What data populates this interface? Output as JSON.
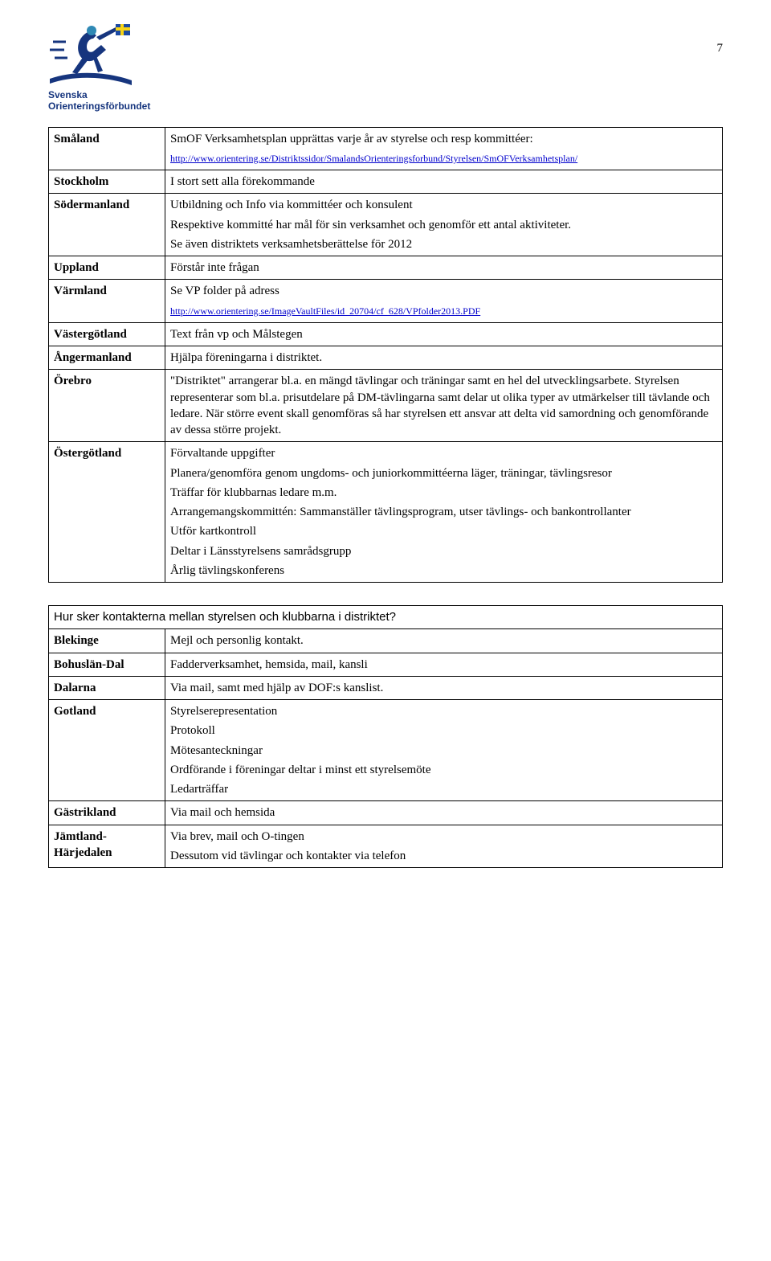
{
  "page_number": "7",
  "logo": {
    "line1": "Svenska",
    "line2": "Orienteringsförbundet",
    "colors": {
      "primary": "#16357e",
      "accent": "#2f89b5",
      "flag_y": "#f7d417",
      "flag_b": "#1b4aa3"
    }
  },
  "table1": {
    "rows": [
      {
        "label": "Småland",
        "paras": [
          {
            "text": "SmOF Verksamhetsplan upprättas varje år av styrelse och resp kommittéer:"
          },
          {
            "link": "http://www.orientering.se/Distriktssidor/SmalandsOrienteringsforbund/Styrelsen/SmOFVerksamhetsplan/",
            "small": true
          }
        ]
      },
      {
        "label": "Stockholm",
        "paras": [
          {
            "text": "I stort sett alla förekommande"
          }
        ]
      },
      {
        "label": "Södermanland",
        "paras": [
          {
            "text": "Utbildning och Info via kommittéer och konsulent"
          },
          {
            "text": "Respektive kommitté har mål för sin verksamhet och genomför ett antal aktiviteter."
          },
          {
            "text": "Se även distriktets verksamhetsberättelse för 2012"
          }
        ]
      },
      {
        "label": "Uppland",
        "paras": [
          {
            "text": "Förstår inte frågan"
          }
        ]
      },
      {
        "label": "Värmland",
        "paras": [
          {
            "text": "Se VP folder på adress"
          },
          {
            "link": "http://www.orientering.se/ImageVaultFiles/id_20704/cf_628/VPfolder2013.PDF",
            "small": true
          }
        ]
      },
      {
        "label": "Västergötland",
        "paras": [
          {
            "text": "Text från vp och Målstegen"
          }
        ]
      },
      {
        "label": "Ångermanland",
        "paras": [
          {
            "text": "Hjälpa föreningarna i distriktet."
          }
        ]
      },
      {
        "label": "Örebro",
        "paras": [
          {
            "text": "\"Distriktet\" arrangerar bl.a. en mängd tävlingar och träningar samt en hel del utvecklingsarbete. Styrelsen representerar som bl.a. prisutdelare på DM-tävlingarna samt delar ut olika typer av utmärkelser till tävlande och ledare. När större event skall genomföras så har styrelsen ett ansvar att delta vid samordning och genomförande av dessa större projekt."
          }
        ]
      },
      {
        "label": "Östergötland",
        "paras": [
          {
            "text": "Förvaltande uppgifter"
          },
          {
            "text": "Planera/genomföra genom ungdoms- och juniorkommittéerna läger, träningar, tävlingsresor"
          },
          {
            "text": "Träffar för klubbarnas ledare m.m."
          },
          {
            "text": "Arrangemangskommittén: Sammanställer tävlingsprogram, utser tävlings- och bankontrollanter"
          },
          {
            "text": "Utför kartkontroll"
          },
          {
            "text": "Deltar i Länsstyrelsens samrådsgrupp"
          },
          {
            "text": "Årlig tävlingskonferens"
          }
        ]
      }
    ]
  },
  "table2": {
    "question": "Hur sker kontakterna mellan styrelsen och klubbarna i distriktet?",
    "rows": [
      {
        "label": "Blekinge",
        "paras": [
          {
            "text": "Mejl och personlig kontakt."
          }
        ]
      },
      {
        "label": "Bohuslän-Dal",
        "paras": [
          {
            "text": "Fadderverksamhet, hemsida, mail, kansli"
          }
        ]
      },
      {
        "label": "Dalarna",
        "paras": [
          {
            "text": "Via mail, samt med hjälp av DOF:s kanslist."
          }
        ]
      },
      {
        "label": "Gotland",
        "paras": [
          {
            "text": "Styrelserepresentation"
          },
          {
            "text": "Protokoll"
          },
          {
            "text": "Mötesanteckningar"
          },
          {
            "text": "Ordförande i föreningar deltar i minst ett styrelsemöte"
          },
          {
            "text": "Ledarträffar"
          }
        ]
      },
      {
        "label": "Gästrikland",
        "paras": [
          {
            "text": "Via mail och hemsida"
          }
        ]
      },
      {
        "label": "Jämtland-Härjedalen",
        "paras": [
          {
            "text": "Via brev, mail och O-tingen"
          },
          {
            "text": "Dessutom vid tävlingar och kontakter via telefon"
          }
        ]
      }
    ]
  }
}
